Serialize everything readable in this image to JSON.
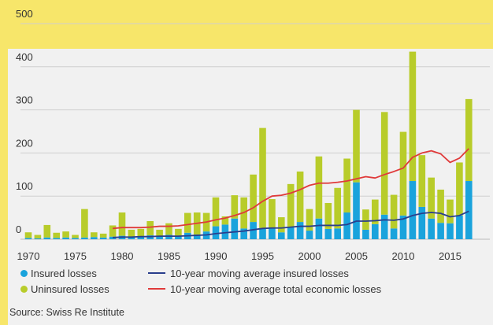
{
  "chart_data": {
    "type": "bar",
    "stacked": true,
    "title": "",
    "xlabel": "",
    "ylabel": "",
    "ylim": [
      0,
      500
    ],
    "yticks": [
      0,
      100,
      200,
      300,
      400,
      500
    ],
    "xticks": [
      1970,
      1975,
      1980,
      1985,
      1990,
      1995,
      2000,
      2005,
      2010,
      2015
    ],
    "grid": true,
    "legend_position": "bottom",
    "colors": {
      "insured": "#1aa3dc",
      "uninsured": "#b8cc2a",
      "avg_insured": "#2a3e8c",
      "avg_total": "#e03a3a"
    },
    "x": [
      1970,
      1971,
      1972,
      1973,
      1974,
      1975,
      1976,
      1977,
      1978,
      1979,
      1980,
      1981,
      1982,
      1983,
      1984,
      1985,
      1986,
      1987,
      1988,
      1989,
      1990,
      1991,
      1992,
      1993,
      1994,
      1995,
      1996,
      1997,
      1998,
      1999,
      2000,
      2001,
      2002,
      2003,
      2004,
      2005,
      2006,
      2007,
      2008,
      2009,
      2010,
      2011,
      2012,
      2013,
      2014,
      2015,
      2016,
      2017
    ],
    "series": [
      {
        "name": "Insured losses",
        "values": [
          3,
          2,
          4,
          3,
          4,
          3,
          4,
          5,
          4,
          6,
          8,
          6,
          7,
          9,
          8,
          10,
          7,
          15,
          11,
          18,
          30,
          34,
          48,
          25,
          40,
          26,
          25,
          16,
          28,
          40,
          20,
          48,
          24,
          25,
          62,
          132,
          22,
          35,
          57,
          25,
          55,
          135,
          75,
          48,
          38,
          37,
          55,
          135
        ]
      },
      {
        "name": "Uninsured losses",
        "values": [
          13,
          8,
          29,
          12,
          14,
          7,
          66,
          11,
          9,
          26,
          54,
          16,
          17,
          33,
          14,
          27,
          17,
          46,
          51,
          43,
          67,
          19,
          54,
          72,
          110,
          232,
          68,
          35,
          100,
          117,
          50,
          144,
          60,
          94,
          125,
          168,
          47,
          57,
          238,
          78,
          194,
          300,
          120,
          95,
          77,
          55,
          123,
          190
        ]
      }
    ],
    "lines": [
      {
        "name": "10-year moving average insured losses",
        "x": [
          1979,
          1980,
          1981,
          1982,
          1983,
          1984,
          1985,
          1986,
          1987,
          1988,
          1989,
          1990,
          1991,
          1992,
          1993,
          1994,
          1995,
          1996,
          1997,
          1998,
          1999,
          2000,
          2001,
          2002,
          2003,
          2004,
          2005,
          2006,
          2007,
          2008,
          2009,
          2010,
          2011,
          2012,
          2013,
          2014,
          2015,
          2016,
          2017
        ],
        "values": [
          4,
          5,
          5,
          6,
          6,
          7,
          7,
          7,
          8,
          9,
          10,
          13,
          15,
          17,
          19,
          22,
          25,
          26,
          26,
          28,
          30,
          30,
          32,
          32,
          32,
          34,
          42,
          42,
          43,
          45,
          44,
          47,
          55,
          60,
          62,
          60,
          52,
          55,
          65
        ]
      },
      {
        "name": "10-year moving average total economic losses",
        "x": [
          1979,
          1980,
          1981,
          1982,
          1983,
          1984,
          1985,
          1986,
          1987,
          1988,
          1989,
          1990,
          1991,
          1992,
          1993,
          1994,
          1995,
          1996,
          1997,
          1998,
          1999,
          2000,
          2001,
          2002,
          2003,
          2004,
          2005,
          2006,
          2007,
          2008,
          2009,
          2010,
          2011,
          2012,
          2013,
          2014,
          2015,
          2016,
          2017
        ],
        "values": [
          25,
          27,
          27,
          27,
          28,
          30,
          30,
          31,
          34,
          37,
          40,
          45,
          49,
          55,
          62,
          73,
          88,
          100,
          102,
          107,
          115,
          125,
          130,
          130,
          132,
          135,
          140,
          145,
          142,
          150,
          157,
          165,
          190,
          200,
          205,
          198,
          178,
          188,
          210
        ]
      }
    ]
  },
  "legend": {
    "insured": "Insured losses",
    "uninsured": "Uninsured losses",
    "avg_insured": "10-year moving average insured losses",
    "avg_total": "10-year moving average total economic losses"
  },
  "source": "Source: Swiss Re Institute"
}
